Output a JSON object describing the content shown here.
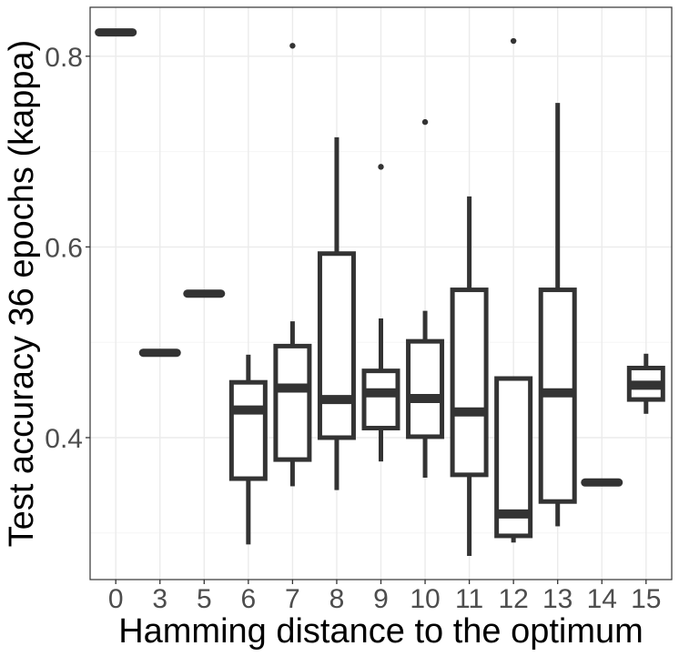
{
  "chart_data": {
    "type": "boxplot",
    "xlabel": "Hamming distance to the optimum",
    "ylabel": "Test accuracy 36 epochs (kappa)",
    "ylim": [
      0.27,
      0.87
    ],
    "yticks": [
      0.4,
      0.6,
      0.8
    ],
    "ytick_labels": [
      "0.4",
      "0.6",
      "0.8"
    ],
    "grid": true,
    "categories": [
      "0",
      "3",
      "5",
      "6",
      "7",
      "8",
      "9",
      "10",
      "11",
      "12",
      "13",
      "14",
      "15"
    ],
    "boxes": [
      {
        "category": "0",
        "whisker_low": 0.825,
        "q1": 0.825,
        "median": 0.825,
        "q3": 0.825,
        "whisker_high": 0.825,
        "outliers": []
      },
      {
        "category": "3",
        "whisker_low": 0.489,
        "q1": 0.489,
        "median": 0.489,
        "q3": 0.489,
        "whisker_high": 0.489,
        "outliers": []
      },
      {
        "category": "5",
        "whisker_low": 0.551,
        "q1": 0.551,
        "median": 0.551,
        "q3": 0.551,
        "whisker_high": 0.551,
        "outliers": []
      },
      {
        "category": "6",
        "whisker_low": 0.288,
        "q1": 0.357,
        "median": 0.429,
        "q3": 0.458,
        "whisker_high": 0.487,
        "outliers": []
      },
      {
        "category": "7",
        "whisker_low": 0.349,
        "q1": 0.377,
        "median": 0.452,
        "q3": 0.496,
        "whisker_high": 0.522,
        "outliers": [
          0.811
        ]
      },
      {
        "category": "8",
        "whisker_low": 0.345,
        "q1": 0.4,
        "median": 0.44,
        "q3": 0.593,
        "whisker_high": 0.715,
        "outliers": []
      },
      {
        "category": "9",
        "whisker_low": 0.375,
        "q1": 0.41,
        "median": 0.447,
        "q3": 0.47,
        "whisker_high": 0.525,
        "outliers": [
          0.684
        ]
      },
      {
        "category": "10",
        "whisker_low": 0.358,
        "q1": 0.401,
        "median": 0.441,
        "q3": 0.501,
        "whisker_high": 0.533,
        "outliers": [
          0.731
        ]
      },
      {
        "category": "11",
        "whisker_low": 0.276,
        "q1": 0.361,
        "median": 0.427,
        "q3": 0.555,
        "whisker_high": 0.653,
        "outliers": []
      },
      {
        "category": "12",
        "whisker_low": 0.29,
        "q1": 0.297,
        "median": 0.32,
        "q3": 0.462,
        "whisker_high": 0.462,
        "outliers": [
          0.816
        ]
      },
      {
        "category": "13",
        "whisker_low": 0.307,
        "q1": 0.333,
        "median": 0.447,
        "q3": 0.555,
        "whisker_high": 0.751,
        "outliers": []
      },
      {
        "category": "14",
        "whisker_low": 0.353,
        "q1": 0.353,
        "median": 0.353,
        "q3": 0.353,
        "whisker_high": 0.353,
        "outliers": []
      },
      {
        "category": "15",
        "whisker_low": 0.425,
        "q1": 0.44,
        "median": 0.455,
        "q3": 0.473,
        "whisker_high": 0.488,
        "outliers": []
      }
    ],
    "colors": {
      "box_stroke": "#333333",
      "box_fill": "#ffffff",
      "grid_major": "#ebebeb",
      "grid_minor": "#f5f5f5",
      "panel_border": "#333333",
      "tick_text": "#4d4d4d",
      "title_text": "#000000"
    }
  }
}
